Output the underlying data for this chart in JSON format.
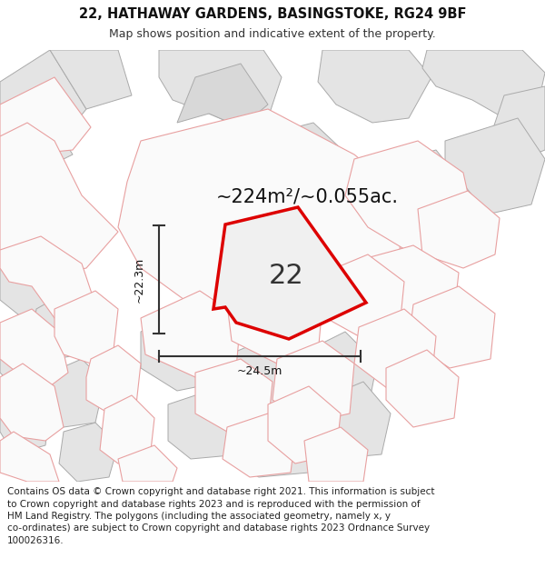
{
  "title_line1": "22, HATHAWAY GARDENS, BASINGSTOKE, RG24 9BF",
  "title_line2": "Map shows position and indicative extent of the property.",
  "footer_lines": [
    "Contains OS data © Crown copyright and database right 2021. This information is subject",
    "to Crown copyright and database rights 2023 and is reproduced with the permission of",
    "HM Land Registry. The polygons (including the associated geometry, namely x, y",
    "co-ordinates) are subject to Crown copyright and database rights 2023 Ordnance Survey",
    "100026316."
  ],
  "area_label": "~224m²/~0.055ac.",
  "property_number": "22",
  "dim_vertical": "~22.3m",
  "dim_horizontal": "~24.5m",
  "map_bg": "#fafafa",
  "red_outline": "#dd0000",
  "gray_fill": "#e4e4e4",
  "gray_stroke": "#aaaaaa",
  "pink_stroke": "#e8a0a0",
  "white_fill": "#fafafa",
  "title_fontsize": 10.5,
  "subtitle_fontsize": 9,
  "footer_fontsize": 7.5,
  "area_fontsize": 15,
  "number_fontsize": 22,
  "dim_fontsize": 9
}
